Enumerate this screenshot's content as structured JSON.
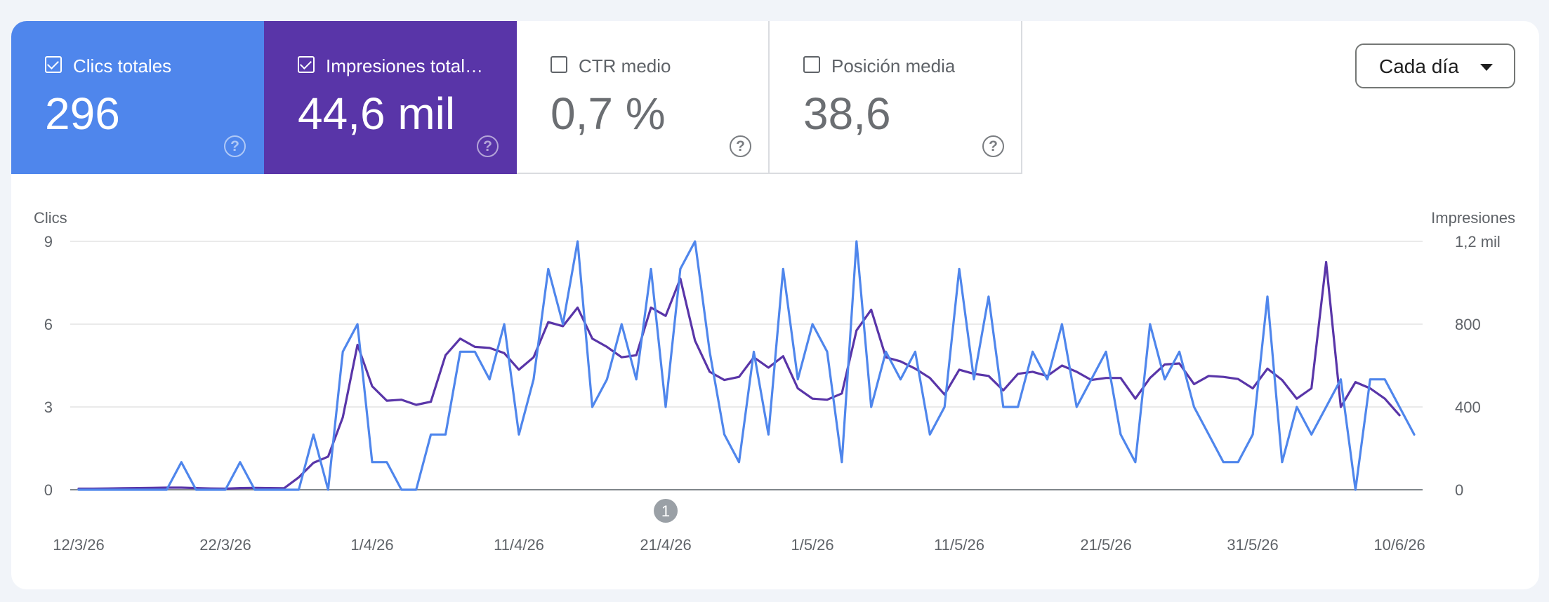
{
  "tiles": [
    {
      "label": "Clics totales",
      "value": "296",
      "checked": true,
      "color": "#4f86ec"
    },
    {
      "label": "Impresiones total…",
      "value": "44,6 mil",
      "checked": true,
      "color": "#5935a8"
    },
    {
      "label": "CTR medio",
      "value": "0,7 %",
      "checked": false
    },
    {
      "label": "Posición media",
      "value": "38,6",
      "checked": false
    }
  ],
  "dropdown": {
    "label": "Cada día"
  },
  "chart_data": {
    "type": "line",
    "left_axis": {
      "title": "Clics",
      "ticks": [
        "0",
        "3",
        "6",
        "9"
      ],
      "range": [
        0,
        9
      ]
    },
    "right_axis": {
      "title": "Impresiones",
      "ticks": [
        "0",
        "400",
        "800",
        "1,2 mil"
      ],
      "range": [
        0,
        1200
      ]
    },
    "x_ticks": [
      "12/3/26",
      "22/3/26",
      "1/4/26",
      "11/4/26",
      "21/4/26",
      "1/5/26",
      "11/5/26",
      "21/5/26",
      "31/5/26",
      "10/6/26"
    ],
    "x_start": "12/3/26",
    "annotation": {
      "label": "1",
      "date": "21/4/26"
    },
    "grid": true,
    "series": [
      {
        "name": "Clics totales",
        "color": "#4f86ec",
        "axis": "left",
        "values": [
          0,
          0,
          0,
          0,
          0,
          0,
          0,
          1,
          0,
          0,
          0,
          1,
          0,
          0,
          0,
          0,
          2,
          0,
          5,
          6,
          1,
          1,
          0,
          0,
          2,
          2,
          5,
          5,
          4,
          6,
          2,
          4,
          8,
          6,
          9,
          3,
          4,
          6,
          4,
          8,
          3,
          8,
          9,
          5,
          2,
          1,
          5,
          2,
          8,
          4,
          6,
          5,
          1,
          9,
          3,
          5,
          4,
          5,
          2,
          3,
          8,
          4,
          7,
          3,
          3,
          5,
          4,
          6,
          3,
          4,
          5,
          2,
          1,
          6,
          4,
          5,
          3,
          2,
          1,
          1,
          2,
          7,
          1,
          3,
          2,
          3,
          4,
          0,
          4,
          4,
          3,
          2
        ]
      },
      {
        "name": "Impresiones totales",
        "color": "#5935a8",
        "axis": "right",
        "values": [
          5,
          5,
          6,
          7,
          8,
          9,
          10,
          10,
          8,
          6,
          5,
          8,
          9,
          8,
          7,
          60,
          130,
          160,
          350,
          700,
          500,
          430,
          435,
          410,
          425,
          650,
          730,
          690,
          685,
          660,
          580,
          640,
          810,
          790,
          880,
          730,
          690,
          640,
          650,
          880,
          840,
          1020,
          720,
          570,
          530,
          545,
          640,
          590,
          645,
          490,
          440,
          435,
          465,
          770,
          870,
          640,
          620,
          585,
          540,
          460,
          580,
          560,
          550,
          480,
          560,
          570,
          550,
          600,
          570,
          530,
          540,
          540,
          440,
          540,
          605,
          610,
          510,
          550,
          545,
          535,
          490,
          585,
          530,
          440,
          490,
          1100,
          400,
          520,
          490,
          440,
          360
        ]
      }
    ]
  }
}
